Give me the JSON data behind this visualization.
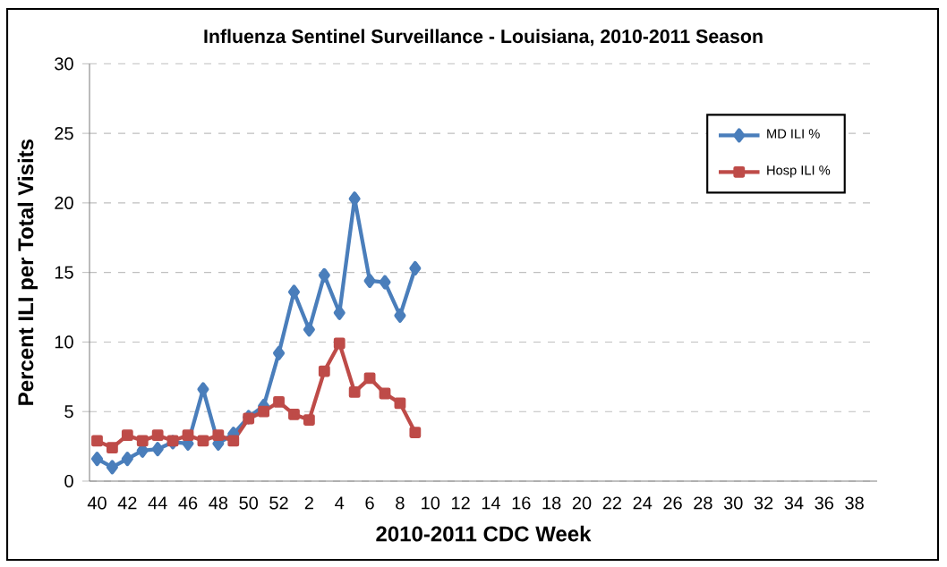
{
  "chart_data": {
    "type": "line",
    "title": "Influenza Sentinel Surveillance - Louisiana, 2010-2011 Season",
    "xlabel": "2010-2011 CDC Week",
    "ylabel": "Percent ILI per Total Visits",
    "categories": [
      "40",
      null,
      "42",
      null,
      "44",
      null,
      "46",
      null,
      "48",
      null,
      "50",
      null,
      "52",
      null,
      "2",
      null,
      "4",
      null,
      "6",
      null,
      "8",
      null,
      "10",
      null,
      "12",
      null,
      "14",
      null,
      "16",
      null,
      "18",
      null,
      "20",
      null,
      "22",
      null,
      "24",
      null,
      "26",
      null,
      "28",
      null,
      "30",
      null,
      "32",
      null,
      "34",
      null,
      "36",
      null,
      "38",
      null
    ],
    "series": [
      {
        "name": "MD ILI %",
        "color": "#4a7ebb",
        "marker": "diamond",
        "values": [
          1.6,
          1.0,
          1.6,
          2.2,
          2.3,
          2.8,
          2.7,
          6.6,
          2.7,
          3.4,
          4.6,
          5.4,
          9.2,
          13.6,
          10.9,
          14.8,
          12.1,
          20.3,
          14.4,
          14.3,
          11.9,
          15.3,
          null,
          null,
          null,
          null,
          null,
          null,
          null,
          null,
          null,
          null,
          null,
          null,
          null,
          null,
          null,
          null,
          null,
          null,
          null,
          null,
          null,
          null,
          null,
          null,
          null,
          null,
          null,
          null,
          null,
          null
        ]
      },
      {
        "name": "Hosp ILI %",
        "color": "#be4b48",
        "marker": "square",
        "values": [
          2.9,
          2.4,
          3.3,
          2.9,
          3.3,
          2.9,
          3.3,
          2.9,
          3.3,
          2.9,
          4.5,
          5.0,
          5.7,
          4.8,
          4.4,
          7.9,
          9.9,
          6.4,
          7.4,
          6.3,
          5.6,
          3.5,
          null,
          null,
          null,
          null,
          null,
          null,
          null,
          null,
          null,
          null,
          null,
          null,
          null,
          null,
          null,
          null,
          null,
          null,
          null,
          null,
          null,
          null,
          null,
          null,
          null,
          null,
          null,
          null,
          null,
          null
        ]
      }
    ],
    "ylim": [
      0,
      30
    ],
    "yticks": [
      0,
      5,
      10,
      15,
      20,
      25,
      30
    ],
    "grid": "y",
    "legend": "top right",
    "line_style": "solid"
  }
}
